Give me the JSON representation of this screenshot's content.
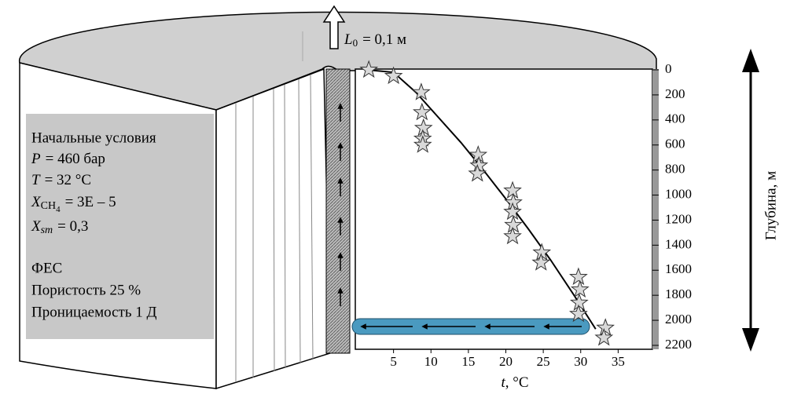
{
  "chart_data": {
    "type": "scatter",
    "x": [
      1.7,
      5.0,
      8.7,
      8.8,
      9.0,
      8.9,
      8.9,
      16.3,
      16.4,
      16.2,
      20.9,
      21.0,
      20.9,
      21.0,
      20.9,
      24.8,
      24.7,
      29.7,
      29.9,
      29.8,
      29.7,
      33.3,
      33.1
    ],
    "values": [
      0,
      50,
      180,
      340,
      465,
      550,
      600,
      680,
      765,
      830,
      965,
      1060,
      1135,
      1240,
      1330,
      1460,
      1540,
      1655,
      1755,
      1860,
      1950,
      2060,
      2140
    ],
    "color": "#d9d9d9",
    "curve": {
      "x": [
        1.5,
        5,
        8,
        11,
        14,
        17,
        20,
        23,
        26,
        29,
        32
      ],
      "values": [
        0,
        20,
        180,
        380,
        580,
        800,
        1030,
        1270,
        1520,
        1790,
        2070
      ],
      "color": "#000000"
    },
    "xlim": [
      0,
      40
    ],
    "ylim": [
      0,
      2200
    ],
    "y_inverted": true,
    "xticks": [
      5,
      10,
      15,
      20,
      25,
      30,
      35
    ],
    "yticks": [
      0,
      200,
      400,
      600,
      800,
      1000,
      1200,
      1400,
      1600,
      1800,
      2000,
      2200
    ],
    "xlabel": {
      "symbol": "t",
      "unit": ", °C"
    },
    "ylabel": "Глубина, м"
  },
  "length_label": {
    "symbol": "L",
    "subscript": "0",
    "value": "= 0,1 м"
  },
  "conditions": {
    "title": "Начальные условия",
    "pressure": {
      "symbol": "P",
      "value": "= 460 бар"
    },
    "temperature": {
      "symbol": "T",
      "value": "= 32 °C"
    },
    "methane": {
      "symbol": "X",
      "subscript": "CH",
      "subsubscript": "4",
      "value": "= 3E – 5"
    },
    "sm": {
      "symbol": "X",
      "subscript": "sm",
      "value": "= 0,3"
    },
    "section": "ФЕС",
    "porosity": "Пористость 25 %",
    "permeability": "Проницаемость 1 Д"
  }
}
